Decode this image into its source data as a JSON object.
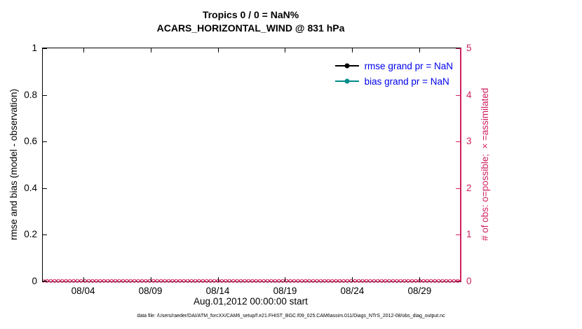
{
  "figure": {
    "caption": "data file: /Users/raeder/DAI/ATM_forcXX/CAM6_setup/f.e21.FHIST_BGC.f09_025.CAM6assim.011/Diags_NTrS_2012-08/obs_diag_output.nc"
  },
  "chart_data": {
    "type": "line",
    "title": "Tropics 0 / 0 = NaN%",
    "subtitle": "ACARS_HORIZONTAL_WIND @ 831 hPa",
    "xlabel": "Aug.01,2012 00:00:00 start",
    "ylabel_left": "rmse and bias (model - observation)",
    "ylabel_right": "# of obs: o=possible; ×=assimilated",
    "x_range_days": [
      1,
      32
    ],
    "xtick_days": [
      4,
      9,
      14,
      19,
      24,
      29
    ],
    "xtick_labels": [
      "08/04",
      "08/09",
      "08/14",
      "08/19",
      "08/24",
      "08/29"
    ],
    "ylim_left": [
      0,
      1
    ],
    "ytick_values_left": [
      0,
      0.2,
      0.4,
      0.6,
      0.8,
      1
    ],
    "ytick_labels_left": [
      "0",
      "0.2",
      "0.4",
      "0.6",
      "0.8",
      "1"
    ],
    "ylim_right": [
      0,
      5
    ],
    "ytick_values_right": [
      0,
      1,
      2,
      3,
      4,
      5
    ],
    "ytick_labels_right": [
      "0",
      "1",
      "2",
      "3",
      "4",
      "5"
    ],
    "grid": false,
    "legend_position": "top-right-inside",
    "colors": {
      "right_axis": "#d02060",
      "legend_text": "#0000ee",
      "axis_left": "#000000"
    },
    "series": [
      {
        "name": "rmse grand pr = NaN",
        "axis": "left",
        "color": "#000000",
        "marker": "circle",
        "values": null,
        "note": "all values NaN, no line drawn"
      },
      {
        "name": "bias grand pr = NaN",
        "axis": "left",
        "color": "#008b8b",
        "marker": "circle",
        "values": null,
        "note": "all values NaN, no line drawn"
      },
      {
        "name": "obs counts: o=possible, x=assimilated",
        "axis": "right",
        "color": "#d02060",
        "marker": "x",
        "constant_value": 0,
        "marker_count": 124,
        "note": "dense row of x markers at 0 spanning full month"
      }
    ]
  }
}
